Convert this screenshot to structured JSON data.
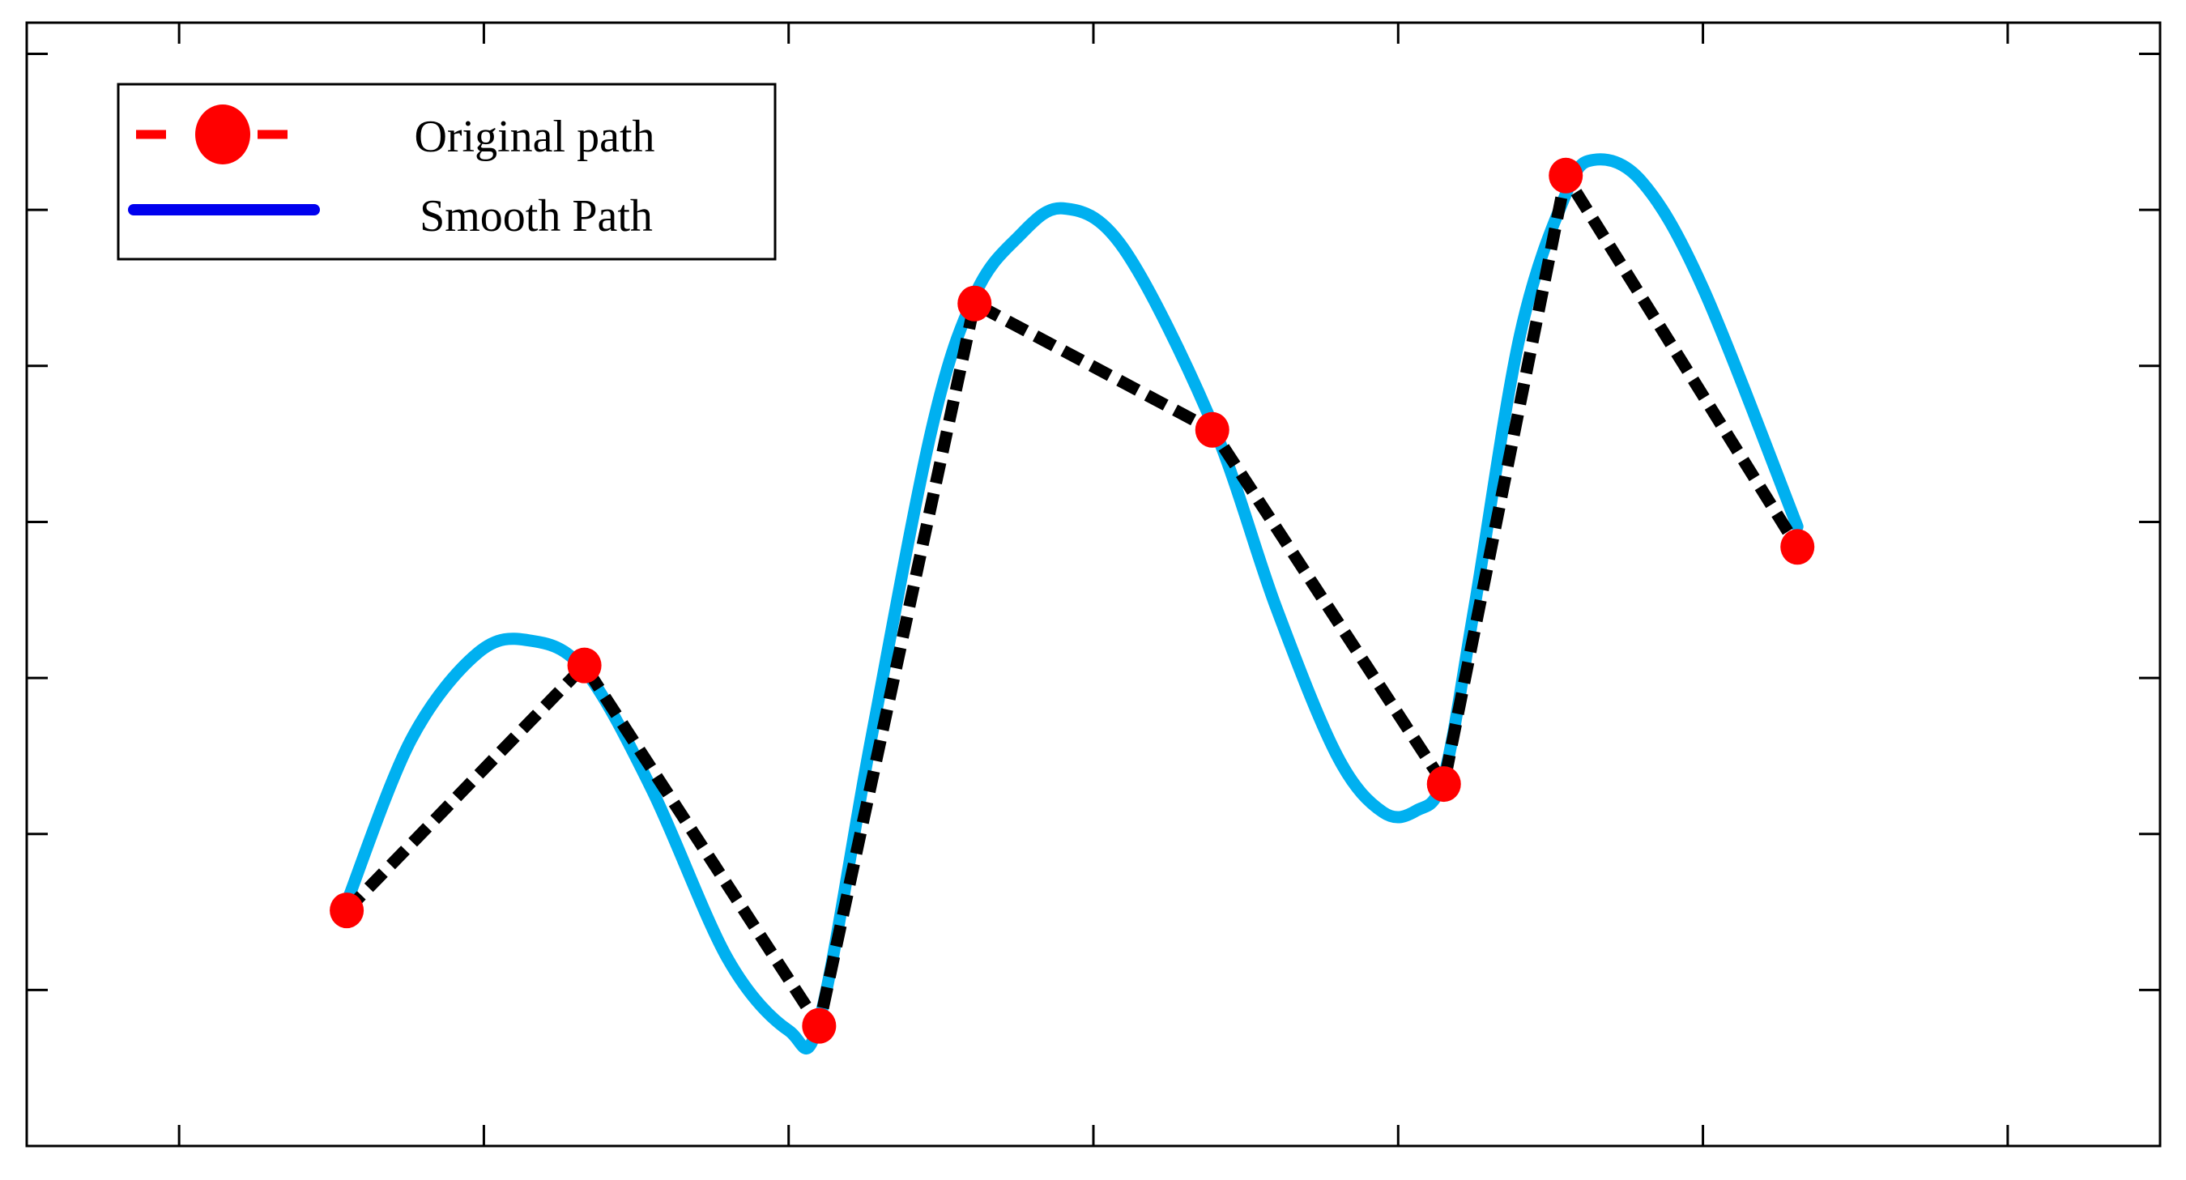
{
  "chart_data": {
    "type": "line",
    "title": "",
    "xlabel": "",
    "ylabel": "",
    "xlim": [
      0,
      7
    ],
    "ylim": [
      0,
      7.2
    ],
    "x_ticks": [
      0.5,
      1.5,
      2.5,
      3.5,
      4.5,
      5.5,
      6.5
    ],
    "y_ticks": [
      0,
      1,
      2,
      3,
      4,
      5,
      6,
      7
    ],
    "tick_labels_shown": false,
    "grid": false,
    "legend_position": "top-left",
    "series": [
      {
        "name": "Original path",
        "style": "dashed line with circle markers",
        "legend_color": "#ff0000",
        "line_color": "#000000",
        "marker_color": "#ff0000",
        "x": [
          1.05,
          1.83,
          2.6,
          3.11,
          3.89,
          4.65,
          5.05,
          5.81
        ],
        "y": [
          1.51,
          3.08,
          0.77,
          5.4,
          4.59,
          2.32,
          6.22,
          3.84
        ]
      },
      {
        "name": "Smooth Path",
        "style": "solid line",
        "legend_color": "#0000ee",
        "line_color": "#00b0f0",
        "x": [
          1.05,
          1.26,
          1.48,
          1.65,
          1.83,
          2.05,
          2.3,
          2.5,
          2.6,
          2.77,
          2.97,
          3.11,
          3.25,
          3.4,
          3.6,
          3.89,
          4.1,
          4.3,
          4.45,
          4.56,
          4.65,
          4.75,
          4.9,
          5.05,
          5.14,
          5.3,
          5.5,
          5.81
        ],
        "y": [
          1.56,
          2.6,
          3.16,
          3.24,
          3.05,
          2.29,
          1.2,
          0.74,
          0.8,
          2.6,
          4.6,
          5.45,
          5.82,
          6.01,
          5.75,
          4.63,
          3.45,
          2.5,
          2.14,
          2.15,
          2.37,
          3.45,
          5.2,
          6.1,
          6.32,
          6.18,
          5.5,
          3.97
        ]
      }
    ]
  }
}
